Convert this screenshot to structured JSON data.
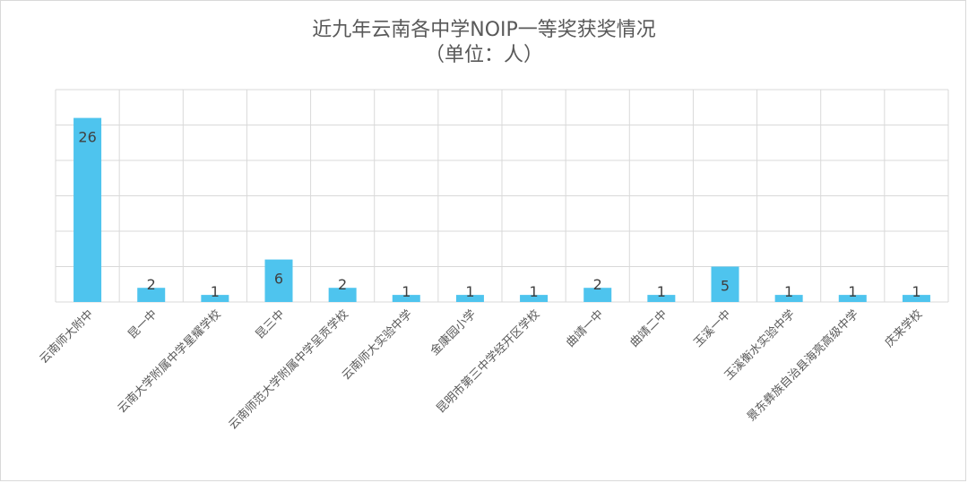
{
  "chart_data": {
    "type": "bar",
    "title": "近九年云南各中学NOIP一等奖获奖情况",
    "subtitle": "（单位：人）",
    "categories": [
      "云南师大附中",
      "昆一中",
      "云南大学附属中学星耀学校",
      "昆三中",
      "云南师范大学附属中学呈贡学校",
      "云南师大实验中学",
      "金康园小学",
      "昆明市第三中学经开区学校",
      "曲靖一中",
      "曲靖二中",
      "玉溪一中",
      "玉溪衡水实验中学",
      "景东彝族自治县海亮高级中学",
      "庆来学校"
    ],
    "values": [
      26,
      2,
      1,
      6,
      2,
      1,
      1,
      1,
      2,
      1,
      5,
      1,
      1,
      1
    ],
    "ylim": [
      0,
      30
    ],
    "grid": true,
    "bar_color": "#4ec4ee"
  }
}
